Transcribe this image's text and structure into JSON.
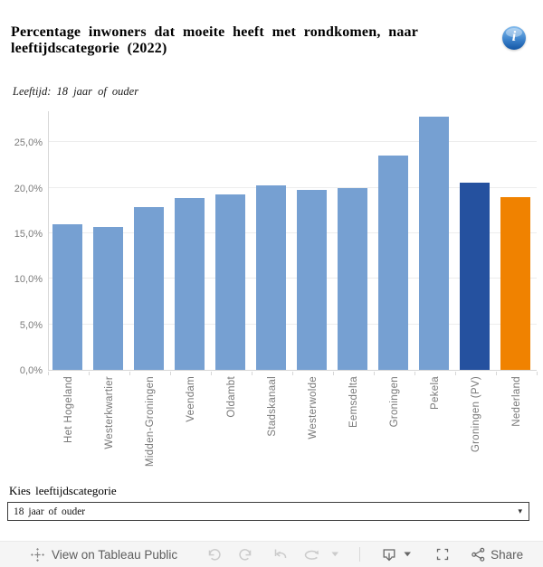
{
  "header": {
    "title": "Percentage inwoners dat moeite heeft met rondkomen, naar leeftijdscategorie (2022)",
    "title_lines": [
      "Percentage inwoners dat moeite heeft met rondkomen, naar",
      "leeftijdscategorie (2022)"
    ],
    "subtitle": "Leeftijd: 18 jaar of ouder",
    "info_glyph": "i"
  },
  "chart_data": {
    "type": "bar",
    "title": "Percentage inwoners dat moeite heeft met rondkomen, naar leeftijdscategorie (2022)",
    "subtitle": "Leeftijd: 18 jaar of ouder",
    "categories": [
      "Het Hogeland",
      "Westerkwartier",
      "Midden-Groningen",
      "Veendam",
      "Oldambt",
      "Stadskanaal",
      "Westerwolde",
      "Eemsdelta",
      "Groningen",
      "Pekela",
      "Groningen (PV)",
      "Nederland"
    ],
    "values": [
      16.0,
      15.7,
      17.9,
      18.9,
      19.3,
      20.3,
      19.8,
      20.0,
      23.5,
      27.8,
      20.6,
      19.0
    ],
    "bar_colors": [
      "#76a0d2",
      "#76a0d2",
      "#76a0d2",
      "#76a0d2",
      "#76a0d2",
      "#76a0d2",
      "#76a0d2",
      "#76a0d2",
      "#76a0d2",
      "#76a0d2",
      "#25519f",
      "#f08200"
    ],
    "colors": {
      "municipality": "#76a0d2",
      "province": "#25519f",
      "netherlands": "#f08200"
    },
    "xlabel": "",
    "ylabel": "",
    "ylim": [
      0,
      28.5
    ],
    "grid": true,
    "value_suffix": "%",
    "decimal_separator": ",",
    "y_ticks": [
      {
        "value": 0,
        "label": "0,0%"
      },
      {
        "value": 5,
        "label": "5,0%"
      },
      {
        "value": 10,
        "label": "10,0%"
      },
      {
        "value": 15,
        "label": "15,0%"
      },
      {
        "value": 20,
        "label": "20,0%"
      },
      {
        "value": 25,
        "label": "25,0%"
      }
    ]
  },
  "filter": {
    "label": "Kies leeftijdscategorie",
    "value": "18 jaar of ouder",
    "arrow_glyph": "▾"
  },
  "toolbar": {
    "view_label": "View on Tableau Public",
    "share_label": "Share",
    "icons": [
      "tableau-logo-icon",
      "undo-icon",
      "redo-icon",
      "reset-icon",
      "refresh-icon",
      "caret-down-icon",
      "download-icon",
      "fullscreen-icon",
      "share-icon"
    ]
  }
}
